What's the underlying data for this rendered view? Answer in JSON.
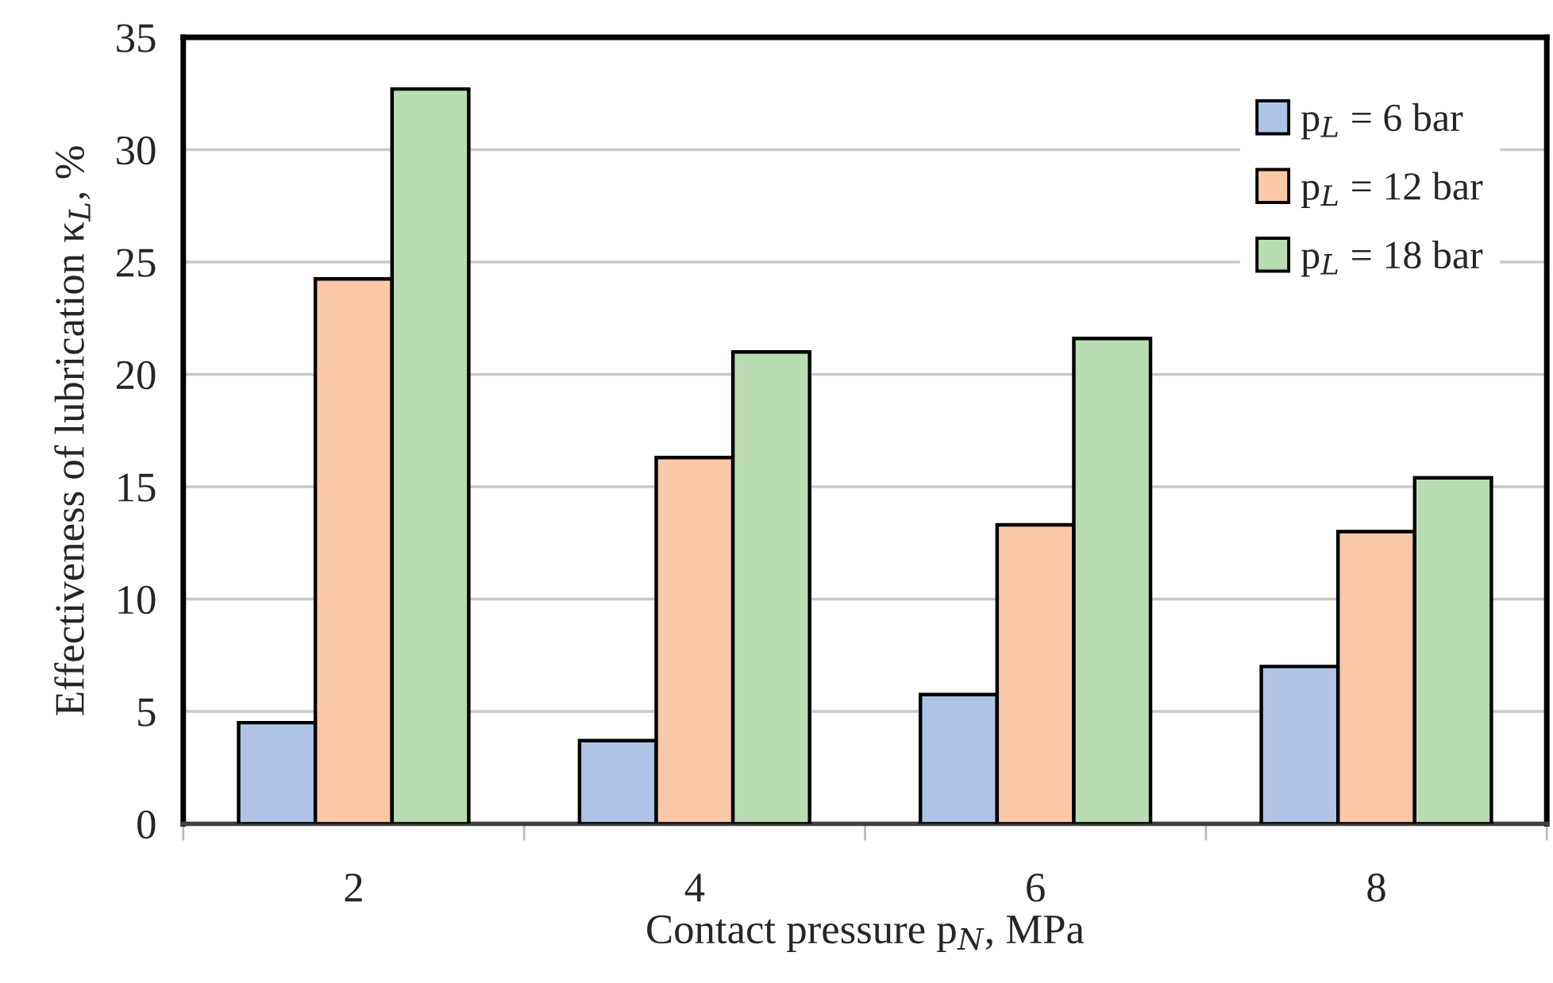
{
  "chart_data": {
    "type": "bar",
    "xlabel": "Contact pressure p$_{N}$, MPa",
    "ylabel": "Effectiveness of lubrication κ$_{L}$, %",
    "categories": [
      "2",
      "4",
      "6",
      "8"
    ],
    "series": [
      {
        "name": "p$_{L}$ = 6 bar",
        "color": "#aec3e6",
        "values": [
          4.5,
          3.7,
          5.75,
          7.0
        ]
      },
      {
        "name": "p$_{L}$ = 12 bar",
        "color": "#fbc8a8",
        "values": [
          24.25,
          16.3,
          13.3,
          13.0
        ]
      },
      {
        "name": "p$_{L}$ = 18 bar",
        "color": "#b9dcb2",
        "values": [
          32.7,
          21.0,
          21.6,
          15.4
        ]
      }
    ],
    "ylim": [
      0,
      35
    ],
    "yticks": [
      0,
      5,
      10,
      15,
      20,
      25,
      30,
      35
    ],
    "grid": "y",
    "legend": "top right"
  }
}
